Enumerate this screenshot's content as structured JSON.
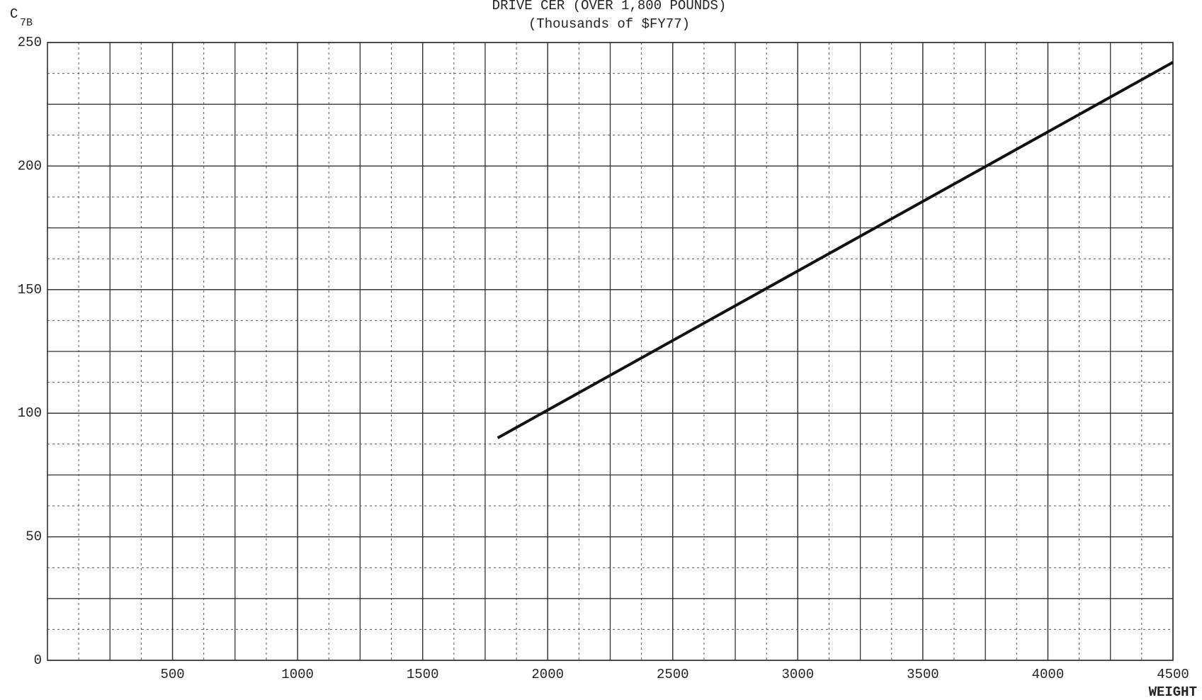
{
  "chart_data": {
    "type": "line",
    "title": "DRIVE CER (OVER 1,800 POUNDS)",
    "subtitle": "(Thousands of $FY77)",
    "y_label": "C",
    "y_label_subscript": "7B",
    "x_label": "WEIGHT",
    "x": [
      1800,
      4500
    ],
    "series": [
      {
        "color": "#111111",
        "values": [
          90,
          242
        ]
      }
    ],
    "xlim": [
      0,
      4500
    ],
    "xticks": [
      500,
      1000,
      1500,
      2000,
      2500,
      3000,
      3500,
      4000,
      4500
    ],
    "ylim": [
      0,
      250
    ],
    "yticks": [
      0,
      50,
      100,
      150,
      200,
      250
    ],
    "grid": true,
    "minor_grid": true
  }
}
